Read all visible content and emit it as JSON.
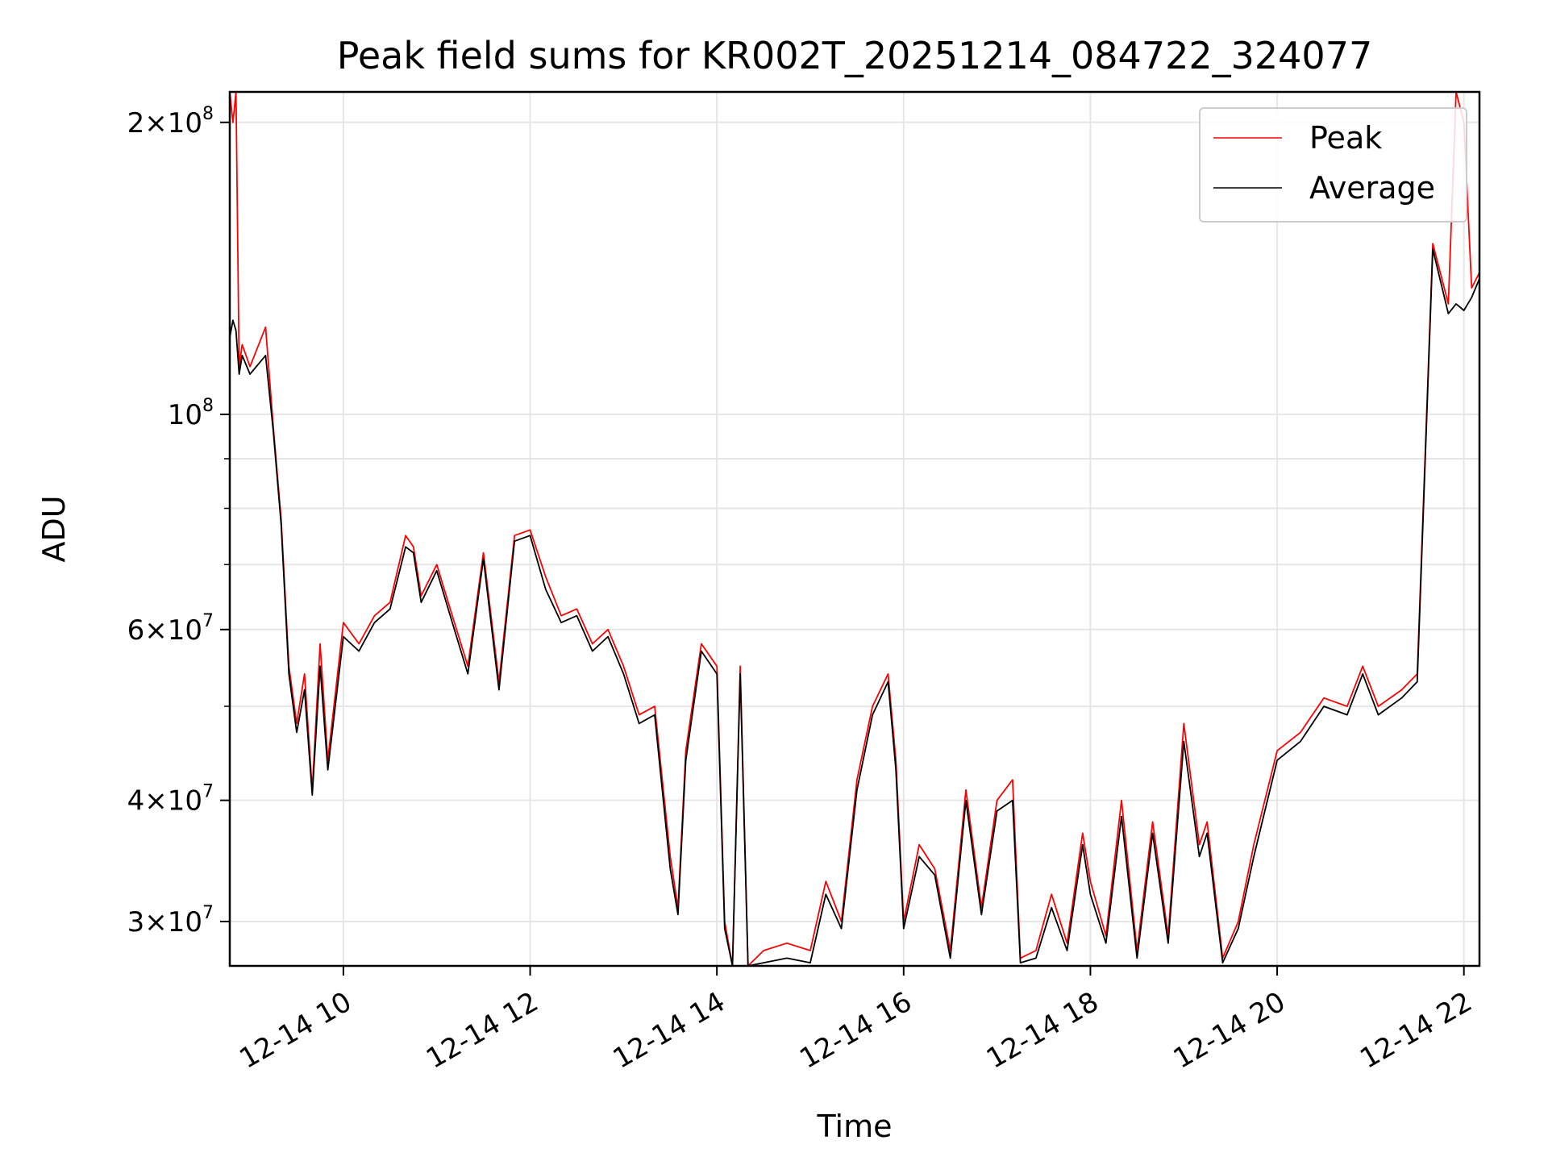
{
  "chart_data": {
    "type": "line",
    "title": "Peak field sums for KR002T_20251214_084722_324077",
    "xlabel": "Time",
    "ylabel": "ADU",
    "yscale": "log",
    "xlim": [
      "2025-12-14 08:47",
      "2025-12-14 22:10"
    ],
    "ylim": [
      27000000,
      215000000
    ],
    "grid": true,
    "legend_position": "top-right",
    "x_ticks": [
      "2025-12-14 10:00",
      "2025-12-14 12:00",
      "2025-12-14 14:00",
      "2025-12-14 16:00",
      "2025-12-14 18:00",
      "2025-12-14 20:00",
      "2025-12-14 22:00"
    ],
    "x_tick_labels": [
      "12-14 10",
      "12-14 12",
      "12-14 14",
      "12-14 16",
      "12-14 18",
      "12-14 20",
      "12-14 22"
    ],
    "y_ticks": [
      {
        "value": 30000000,
        "mantissa": "3",
        "exponent": "7"
      },
      {
        "value": 40000000,
        "mantissa": "4",
        "exponent": "7"
      },
      {
        "value": 60000000,
        "mantissa": "6",
        "exponent": "7"
      },
      {
        "value": 100000000,
        "mantissa": "",
        "exponent": "8"
      },
      {
        "value": 200000000,
        "mantissa": "2",
        "exponent": "8"
      }
    ],
    "y_minor_ticks": [
      50000000,
      70000000,
      80000000,
      90000000
    ],
    "series": [
      {
        "name": "Peak",
        "color": "#ff0000",
        "x": [
          "2025-12-14 08:47",
          "2025-12-14 08:49",
          "2025-12-14 08:51",
          "2025-12-14 08:53",
          "2025-12-14 08:55",
          "2025-12-14 09:00",
          "2025-12-14 09:10",
          "2025-12-14 09:15",
          "2025-12-14 09:20",
          "2025-12-14 09:25",
          "2025-12-14 09:30",
          "2025-12-14 09:35",
          "2025-12-14 09:40",
          "2025-12-14 09:45",
          "2025-12-14 09:50",
          "2025-12-14 10:00",
          "2025-12-14 10:10",
          "2025-12-14 10:20",
          "2025-12-14 10:30",
          "2025-12-14 10:40",
          "2025-12-14 10:45",
          "2025-12-14 10:50",
          "2025-12-14 11:00",
          "2025-12-14 11:10",
          "2025-12-14 11:20",
          "2025-12-14 11:30",
          "2025-12-14 11:40",
          "2025-12-14 11:50",
          "2025-12-14 12:00",
          "2025-12-14 12:10",
          "2025-12-14 12:20",
          "2025-12-14 12:30",
          "2025-12-14 12:40",
          "2025-12-14 12:50",
          "2025-12-14 13:00",
          "2025-12-14 13:10",
          "2025-12-14 13:20",
          "2025-12-14 13:30",
          "2025-12-14 13:35",
          "2025-12-14 13:40",
          "2025-12-14 13:50",
          "2025-12-14 14:00",
          "2025-12-14 14:05",
          "2025-12-14 14:10",
          "2025-12-14 14:15",
          "2025-12-14 14:20",
          "2025-12-14 14:30",
          "2025-12-14 14:45",
          "2025-12-14 15:00",
          "2025-12-14 15:10",
          "2025-12-14 15:20",
          "2025-12-14 15:30",
          "2025-12-14 15:40",
          "2025-12-14 15:50",
          "2025-12-14 15:55",
          "2025-12-14 16:00",
          "2025-12-14 16:10",
          "2025-12-14 16:20",
          "2025-12-14 16:30",
          "2025-12-14 16:40",
          "2025-12-14 16:50",
          "2025-12-14 17:00",
          "2025-12-14 17:10",
          "2025-12-14 17:15",
          "2025-12-14 17:25",
          "2025-12-14 17:35",
          "2025-12-14 17:45",
          "2025-12-14 17:55",
          "2025-12-14 18:00",
          "2025-12-14 18:10",
          "2025-12-14 18:20",
          "2025-12-14 18:30",
          "2025-12-14 18:40",
          "2025-12-14 18:50",
          "2025-12-14 19:00",
          "2025-12-14 19:10",
          "2025-12-14 19:15",
          "2025-12-14 19:25",
          "2025-12-14 19:35",
          "2025-12-14 19:45",
          "2025-12-14 20:00",
          "2025-12-14 20:15",
          "2025-12-14 20:30",
          "2025-12-14 20:45",
          "2025-12-14 20:55",
          "2025-12-14 21:05",
          "2025-12-14 21:20",
          "2025-12-14 21:30",
          "2025-12-14 21:40",
          "2025-12-14 21:50",
          "2025-12-14 21:55",
          "2025-12-14 22:00",
          "2025-12-14 22:05",
          "2025-12-14 22:10"
        ],
        "y": [
          215000000,
          200000000,
          215000000,
          112000000,
          118000000,
          112000000,
          123000000,
          97000000,
          78000000,
          55000000,
          48000000,
          54000000,
          41000000,
          58000000,
          44000000,
          61000000,
          58000000,
          62000000,
          64000000,
          75000000,
          73000000,
          65000000,
          70000000,
          62000000,
          55000000,
          72000000,
          53000000,
          75000000,
          76000000,
          68000000,
          62000000,
          63000000,
          58000000,
          60000000,
          55000000,
          49000000,
          50000000,
          35000000,
          31000000,
          45000000,
          58000000,
          55000000,
          30000000,
          27000000,
          55000000,
          27000000,
          28000000,
          28500000,
          28000000,
          33000000,
          30000000,
          42000000,
          50000000,
          54000000,
          44000000,
          30000000,
          36000000,
          34000000,
          28000000,
          41000000,
          31000000,
          40000000,
          42000000,
          27500000,
          28000000,
          32000000,
          28500000,
          37000000,
          33000000,
          29000000,
          40000000,
          28000000,
          38000000,
          29000000,
          48000000,
          36000000,
          38000000,
          27500000,
          30000000,
          36000000,
          45000000,
          47000000,
          51000000,
          50000000,
          55000000,
          50000000,
          52000000,
          54000000,
          150000000,
          130000000,
          215000000,
          200000000,
          135000000,
          140000000
        ]
      },
      {
        "name": "Average",
        "color": "#000000",
        "x": [
          "2025-12-14 08:47",
          "2025-12-14 08:49",
          "2025-12-14 08:51",
          "2025-12-14 08:53",
          "2025-12-14 08:55",
          "2025-12-14 09:00",
          "2025-12-14 09:10",
          "2025-12-14 09:15",
          "2025-12-14 09:20",
          "2025-12-14 09:25",
          "2025-12-14 09:30",
          "2025-12-14 09:35",
          "2025-12-14 09:40",
          "2025-12-14 09:45",
          "2025-12-14 09:50",
          "2025-12-14 10:00",
          "2025-12-14 10:10",
          "2025-12-14 10:20",
          "2025-12-14 10:30",
          "2025-12-14 10:40",
          "2025-12-14 10:45",
          "2025-12-14 10:50",
          "2025-12-14 11:00",
          "2025-12-14 11:10",
          "2025-12-14 11:20",
          "2025-12-14 11:30",
          "2025-12-14 11:40",
          "2025-12-14 11:50",
          "2025-12-14 12:00",
          "2025-12-14 12:10",
          "2025-12-14 12:20",
          "2025-12-14 12:30",
          "2025-12-14 12:40",
          "2025-12-14 12:50",
          "2025-12-14 13:00",
          "2025-12-14 13:10",
          "2025-12-14 13:20",
          "2025-12-14 13:30",
          "2025-12-14 13:35",
          "2025-12-14 13:40",
          "2025-12-14 13:50",
          "2025-12-14 14:00",
          "2025-12-14 14:05",
          "2025-12-14 14:10",
          "2025-12-14 14:15",
          "2025-12-14 14:20",
          "2025-12-14 14:30",
          "2025-12-14 14:45",
          "2025-12-14 15:00",
          "2025-12-14 15:10",
          "2025-12-14 15:20",
          "2025-12-14 15:30",
          "2025-12-14 15:40",
          "2025-12-14 15:50",
          "2025-12-14 15:55",
          "2025-12-14 16:00",
          "2025-12-14 16:10",
          "2025-12-14 16:20",
          "2025-12-14 16:30",
          "2025-12-14 16:40",
          "2025-12-14 16:50",
          "2025-12-14 17:00",
          "2025-12-14 17:10",
          "2025-12-14 17:15",
          "2025-12-14 17:25",
          "2025-12-14 17:35",
          "2025-12-14 17:45",
          "2025-12-14 17:55",
          "2025-12-14 18:00",
          "2025-12-14 18:10",
          "2025-12-14 18:20",
          "2025-12-14 18:30",
          "2025-12-14 18:40",
          "2025-12-14 18:50",
          "2025-12-14 19:00",
          "2025-12-14 19:10",
          "2025-12-14 19:15",
          "2025-12-14 19:25",
          "2025-12-14 19:35",
          "2025-12-14 19:45",
          "2025-12-14 20:00",
          "2025-12-14 20:15",
          "2025-12-14 20:30",
          "2025-12-14 20:45",
          "2025-12-14 20:55",
          "2025-12-14 21:05",
          "2025-12-14 21:20",
          "2025-12-14 21:30",
          "2025-12-14 21:40",
          "2025-12-14 21:50",
          "2025-12-14 21:55",
          "2025-12-14 22:00",
          "2025-12-14 22:05",
          "2025-12-14 22:10"
        ],
        "y": [
          120000000,
          125000000,
          122000000,
          110000000,
          115000000,
          110000000,
          115000000,
          96000000,
          77000000,
          54000000,
          47000000,
          52000000,
          40500000,
          55000000,
          43000000,
          59000000,
          57000000,
          61000000,
          63000000,
          73000000,
          72000000,
          64000000,
          69000000,
          61000000,
          54000000,
          71000000,
          52000000,
          74000000,
          75000000,
          66000000,
          61000000,
          62000000,
          57000000,
          59000000,
          54000000,
          48000000,
          49000000,
          34000000,
          30500000,
          44000000,
          57000000,
          54000000,
          29500000,
          26800000,
          54000000,
          26800000,
          27200000,
          27500000,
          27200000,
          32000000,
          29500000,
          41000000,
          49000000,
          53000000,
          43000000,
          29500000,
          35000000,
          33500000,
          27500000,
          40000000,
          30500000,
          39000000,
          40000000,
          27200000,
          27500000,
          31000000,
          28000000,
          36000000,
          32000000,
          28500000,
          38500000,
          27500000,
          37000000,
          28500000,
          46000000,
          35000000,
          37000000,
          27200000,
          29500000,
          35000000,
          44000000,
          46000000,
          50000000,
          49000000,
          54000000,
          49000000,
          51000000,
          53000000,
          148000000,
          127000000,
          130000000,
          128000000,
          132000000,
          138000000
        ]
      }
    ]
  }
}
